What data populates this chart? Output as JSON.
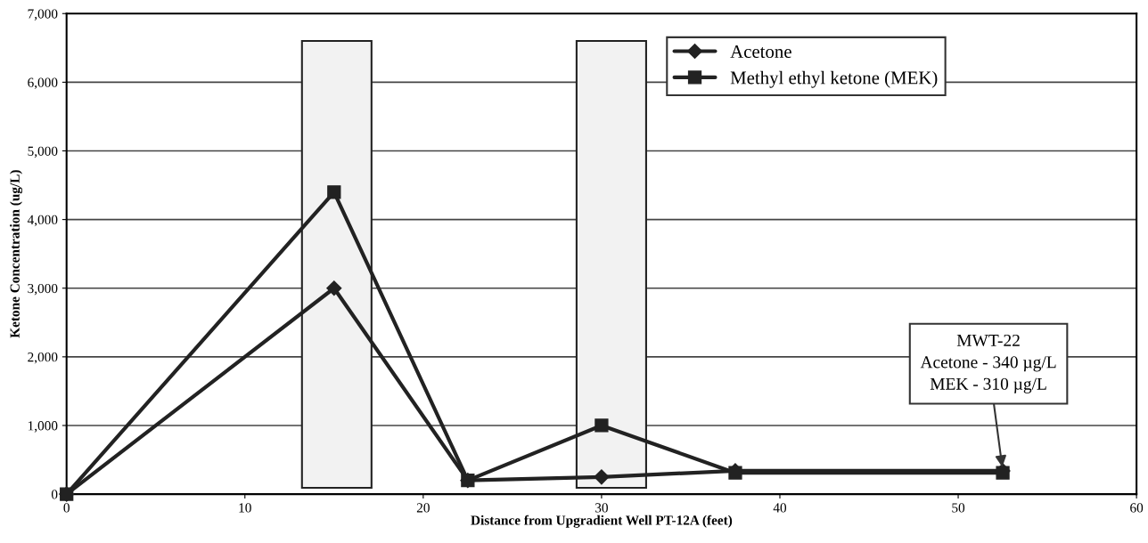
{
  "chart_data": {
    "type": "line",
    "xlabel": "Distance from Upgradient Well PT-12A (feet)",
    "ylabel": "Ketone Concentration (ug/L)",
    "x": [
      0,
      15,
      22.5,
      30,
      37.5,
      52.5
    ],
    "series": [
      {
        "name": "Acetone",
        "color": "#222222",
        "marker": "diamond",
        "values": [
          0,
          3000,
          200,
          250,
          340,
          340
        ]
      },
      {
        "name": "Methyl ethyl ketone (MEK)",
        "color": "#222222",
        "marker": "square",
        "values": [
          0,
          4400,
          200,
          1000,
          310,
          310
        ]
      }
    ],
    "xlim": [
      0,
      60
    ],
    "xticks": [
      0,
      10,
      20,
      30,
      40,
      50,
      60
    ],
    "ylim": [
      0,
      7000
    ],
    "yticks": [
      {
        "value": 0,
        "label": "0"
      },
      {
        "value": 1000,
        "label": "1,000"
      },
      {
        "value": 2000,
        "label": "2,000"
      },
      {
        "value": 3000,
        "label": "3,000"
      },
      {
        "value": 4000,
        "label": "4,000"
      },
      {
        "value": 5000,
        "label": "5,000"
      },
      {
        "value": 6000,
        "label": "6,000"
      },
      {
        "value": 7000,
        "label": "7,000"
      }
    ],
    "bands": [
      {
        "axis": "x",
        "from": 13.2,
        "to": 17.1,
        "color": "#f2f2f2"
      },
      {
        "axis": "x",
        "from": 28.6,
        "to": 32.5,
        "color": "#f2f2f2"
      }
    ],
    "annotations": [
      {
        "text": "MWT-22\nAcetone - 340 µg/L\nMEK - 310 µg/L",
        "x": 52.5,
        "y": 340
      }
    ],
    "grid": "y",
    "legend": "top right",
    "line_style": "solid"
  }
}
